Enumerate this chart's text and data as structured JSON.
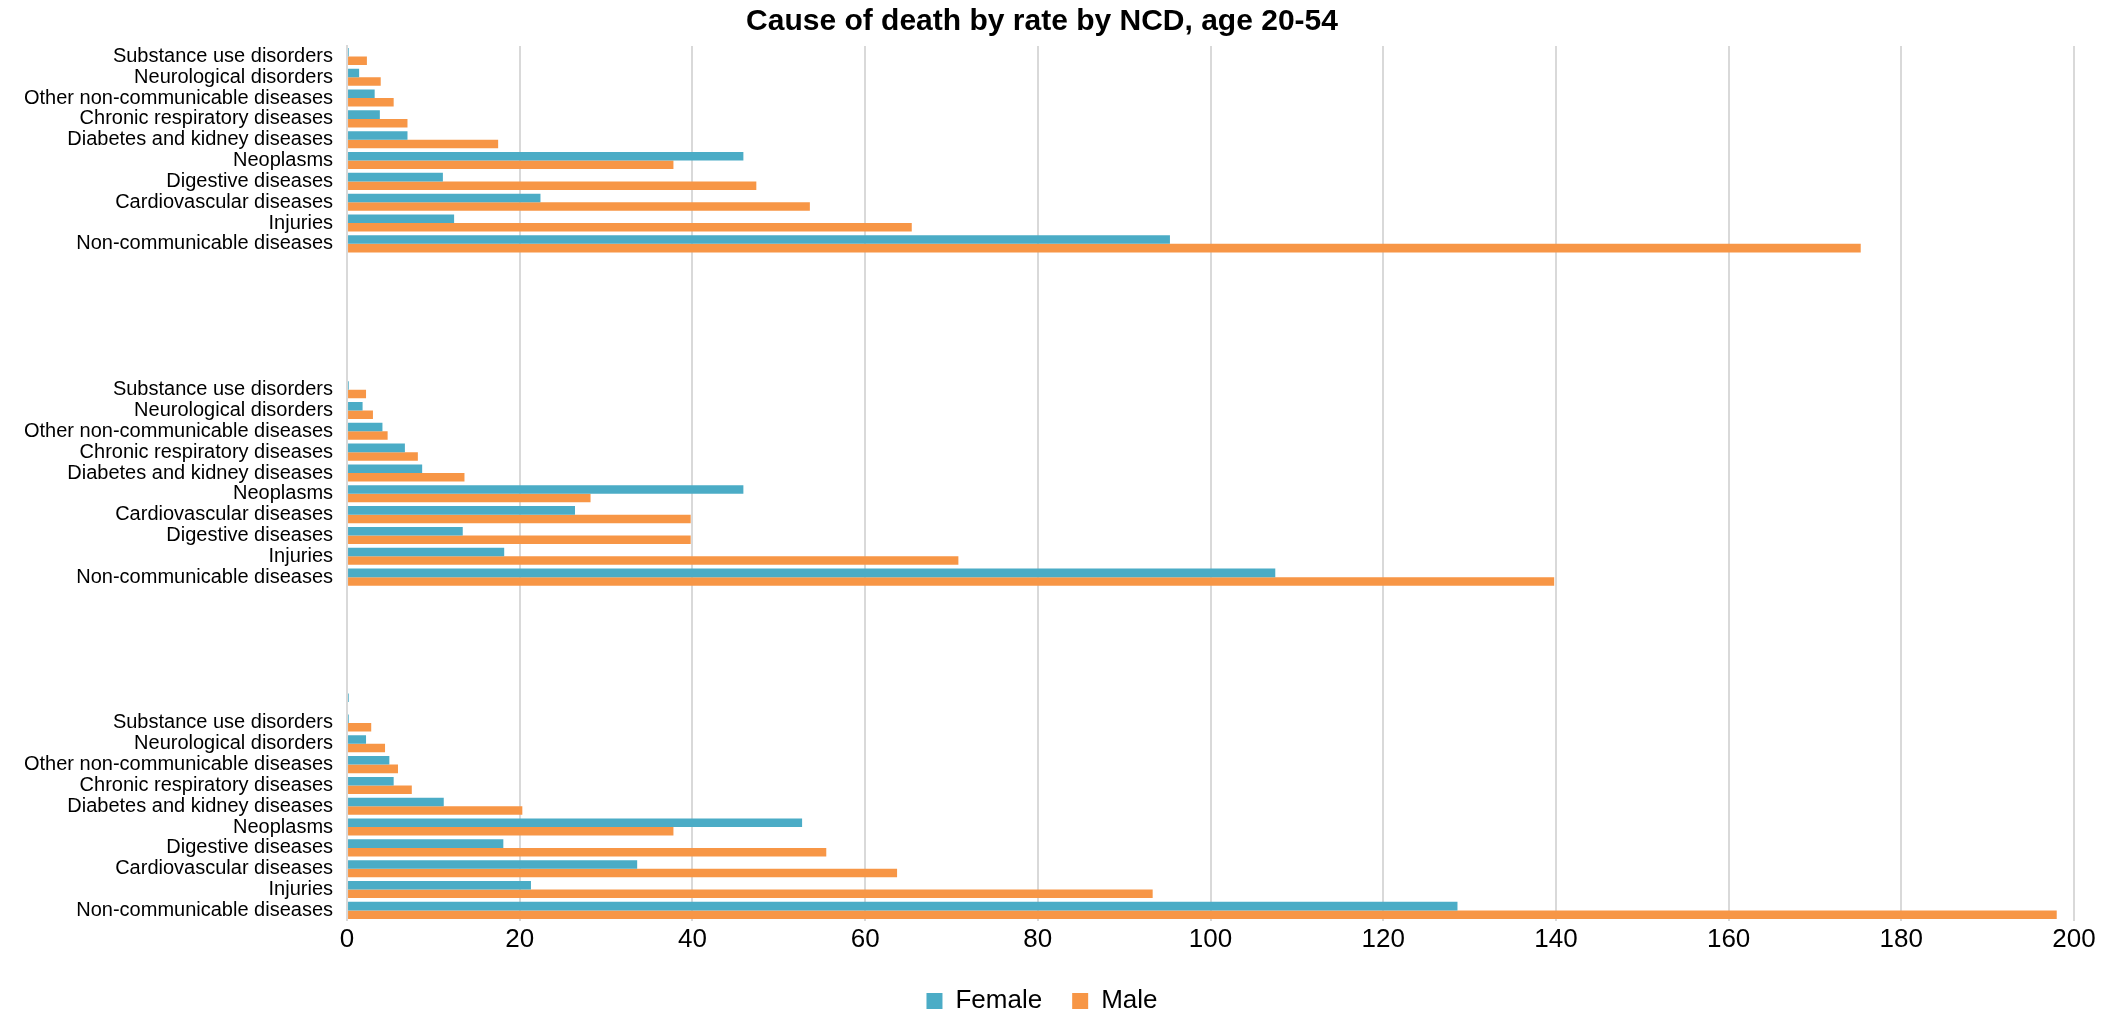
{
  "chart_data": {
    "type": "bar",
    "orientation": "horizontal",
    "title": "Cause of death by rate by NCD, age 20-54",
    "categories": [
      "Substance use disorders",
      "Neurological disorders",
      "Other non-communicable diseases",
      "Chronic respiratory diseases",
      "Diabetes and kidney diseases",
      "Neoplasms",
      "Digestive diseases",
      "Cardiovascular diseases",
      "Injuries",
      "Non-communicable diseases",
      null,
      null,
      null,
      null,
      null,
      null,
      "Substance use disorders",
      "Neurological disorders",
      "Other non-communicable diseases",
      "Chronic respiratory diseases",
      "Diabetes and kidney diseases",
      "Neoplasms",
      "Cardiovascular diseases",
      "Digestive diseases",
      "Injuries",
      "Non-communicable diseases",
      null,
      null,
      null,
      null,
      null,
      null,
      "Substance use disorders",
      "Neurological disorders",
      "Other non-communicable diseases",
      "Chronic respiratory diseases",
      "Diabetes and kidney diseases",
      "Neoplasms",
      "Digestive diseases",
      "Cardiovascular diseases",
      "Injuries",
      "Non-communicable diseases"
    ],
    "series": [
      {
        "name": "Female",
        "color": "#4bacc6",
        "values": [
          0.2,
          1.4,
          3.2,
          3.8,
          7.0,
          45.9,
          11.1,
          22.4,
          12.4,
          95.3,
          null,
          null,
          null,
          null,
          null,
          null,
          0.2,
          1.8,
          4.1,
          6.7,
          8.7,
          45.9,
          26.4,
          13.4,
          18.2,
          107.5,
          null,
          null,
          null,
          null,
          null,
          0.2,
          0.2,
          2.2,
          4.9,
          5.4,
          11.2,
          52.7,
          18.1,
          33.6,
          21.3,
          128.6
        ]
      },
      {
        "name": "Male",
        "color": "#f79646",
        "values": [
          2.3,
          3.9,
          5.4,
          7.0,
          17.5,
          37.8,
          47.4,
          53.6,
          65.4,
          175.3,
          null,
          null,
          null,
          null,
          null,
          null,
          2.2,
          3.0,
          4.7,
          8.2,
          13.6,
          28.2,
          39.8,
          39.8,
          70.8,
          139.8,
          null,
          null,
          null,
          null,
          null,
          null,
          2.8,
          4.4,
          5.9,
          7.5,
          20.3,
          37.8,
          55.5,
          63.7,
          93.3,
          198.0
        ]
      }
    ],
    "xlim": [
      0,
      200
    ],
    "xticks": [
      0,
      20,
      40,
      60,
      80,
      100,
      120,
      140,
      160,
      180,
      200
    ],
    "grid": "x",
    "legend": "bottom"
  }
}
